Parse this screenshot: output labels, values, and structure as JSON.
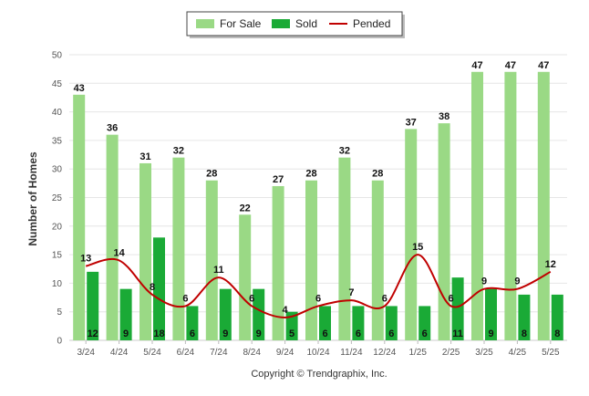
{
  "chart_data": {
    "type": "bar",
    "title": "",
    "xlabel": "",
    "ylabel": "Number of Homes",
    "ylim": [
      0,
      50
    ],
    "yticks": [
      0,
      5,
      10,
      15,
      20,
      25,
      30,
      35,
      40,
      45,
      50
    ],
    "grid": true,
    "legend_position": "top-center",
    "categories": [
      "3/24",
      "4/24",
      "5/24",
      "6/24",
      "7/24",
      "8/24",
      "9/24",
      "10/24",
      "11/24",
      "12/24",
      "1/25",
      "2/25",
      "3/25",
      "4/25",
      "5/25"
    ],
    "series": [
      {
        "name": "For Sale",
        "kind": "bar",
        "color": "#9ad985",
        "values": [
          43,
          36,
          31,
          32,
          28,
          22,
          27,
          28,
          32,
          28,
          37,
          38,
          47,
          47,
          47
        ]
      },
      {
        "name": "Sold",
        "kind": "bar",
        "color": "#1aaa36",
        "values": [
          12,
          9,
          18,
          6,
          9,
          9,
          5,
          6,
          6,
          6,
          6,
          11,
          9,
          8,
          8
        ]
      },
      {
        "name": "Pended",
        "kind": "line",
        "color": "#c00000",
        "values": [
          13,
          14,
          8,
          6,
          11,
          6,
          4,
          6,
          7,
          6,
          15,
          6,
          9,
          9,
          12
        ]
      }
    ]
  },
  "footer": {
    "copyright": "Copyright © Trendgraphix, Inc."
  }
}
